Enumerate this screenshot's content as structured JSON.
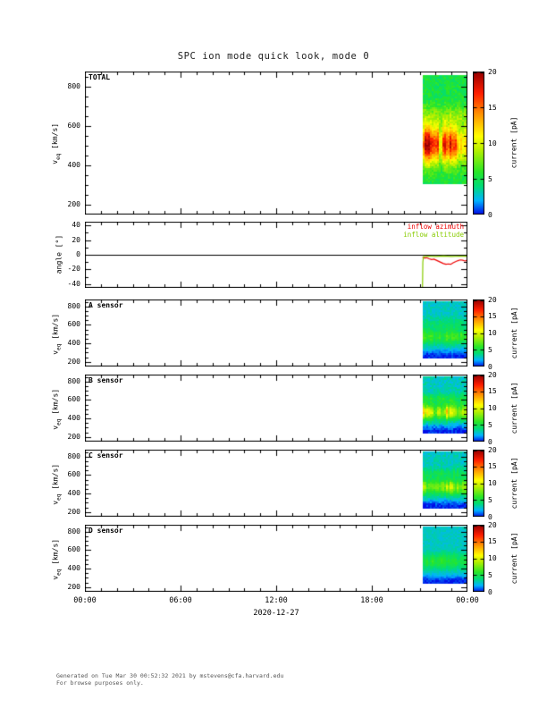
{
  "page": {
    "title": "SPC ion mode quick look, mode 0",
    "footer": [
      "Generated on Tue Mar 30 00:52:32 2021 by mstevens@cfa.harvard.edu",
      "For browse purposes only."
    ]
  },
  "x_axis": {
    "range_hours": [
      0,
      24
    ],
    "major_tick_hours": [
      0,
      6,
      12,
      18,
      24
    ],
    "tick_labels": [
      "00:00",
      "06:00",
      "12:00",
      "18:00",
      "00:00"
    ],
    "minor_tick_step_hours": 1,
    "date_label": "2020-12-27"
  },
  "velocity_axis": {
    "title_main": "v",
    "title_sub": "eq",
    "title_rest": " [km/s]",
    "range": [
      150,
      875
    ],
    "major_ticks": [
      200,
      400,
      600,
      800
    ],
    "minor_tick_step": 50
  },
  "angle_axis": {
    "title": "angle [°]",
    "range": [
      -45,
      45
    ],
    "major_ticks": [
      -40,
      -20,
      0,
      20,
      40
    ],
    "minor_tick_step": 10
  },
  "colorbar": {
    "title": "current [pA]",
    "range": [
      0,
      20
    ],
    "major_ticks": [
      0,
      5,
      10,
      15,
      20
    ],
    "colormap_stops": [
      [
        0.0,
        "#0000e6"
      ],
      [
        0.1,
        "#00b4ff"
      ],
      [
        0.2,
        "#00dc78"
      ],
      [
        0.3,
        "#28e628"
      ],
      [
        0.45,
        "#b4f000"
      ],
      [
        0.55,
        "#ffff00"
      ],
      [
        0.7,
        "#ff9600"
      ],
      [
        0.85,
        "#ff1e00"
      ],
      [
        1.0,
        "#960000"
      ]
    ]
  },
  "chart_data": [
    {
      "type": "heatmap",
      "panel_label": "TOTAL",
      "value_unit": "pA",
      "time_range_hours": [
        21.15,
        24.0
      ],
      "velocity_range_kms": [
        300,
        860
      ],
      "background_pA": 5.2,
      "noise_pA": 1.1,
      "bands": [
        {
          "v_center": 505,
          "v_sigma": 68,
          "amp_pA": 12.5,
          "streak": 0.45,
          "time_profile": [
            [
              21.15,
              0.95
            ],
            [
              21.7,
              1.0
            ],
            [
              22.15,
              0.85
            ],
            [
              22.3,
              0.35
            ],
            [
              22.5,
              0.95
            ],
            [
              22.9,
              1.0
            ],
            [
              23.25,
              0.8
            ],
            [
              23.45,
              0.4
            ],
            [
              23.7,
              0.55
            ],
            [
              24.0,
              0.6
            ]
          ]
        },
        {
          "v_center": 650,
          "v_sigma": 38,
          "amp_pA": 2.2,
          "streak": 0.3,
          "time_profile": [
            [
              21.15,
              1.0
            ],
            [
              24.0,
              1.0
            ]
          ]
        }
      ]
    },
    {
      "type": "line",
      "panel_label": "angle",
      "zero_line_deg": 0,
      "series": [
        {
          "name": "inflow azimuth",
          "color": "#ee0000",
          "points": [
            [
              21.18,
              -3.2
            ],
            [
              21.3,
              -4.5
            ],
            [
              21.45,
              -4.0
            ],
            [
              21.6,
              -5.5
            ],
            [
              21.75,
              -6.5
            ],
            [
              21.9,
              -6.0
            ],
            [
              22.05,
              -7.5
            ],
            [
              22.2,
              -9.0
            ],
            [
              22.35,
              -10.5
            ],
            [
              22.5,
              -12.0
            ],
            [
              22.65,
              -13.0
            ],
            [
              22.8,
              -12.5
            ],
            [
              22.95,
              -13.0
            ],
            [
              23.1,
              -11.0
            ],
            [
              23.25,
              -9.5
            ],
            [
              23.4,
              -8.0
            ],
            [
              23.55,
              -7.0
            ],
            [
              23.7,
              -7.5
            ],
            [
              23.85,
              -8.5
            ],
            [
              24.0,
              -7.5
            ]
          ]
        },
        {
          "name": "inflow altitude",
          "color": "#88cc00",
          "points": [
            [
              21.18,
              -44.0
            ],
            [
              21.2,
              -10.0
            ],
            [
              21.24,
              -2.5
            ],
            [
              21.5,
              -1.8
            ],
            [
              22.0,
              -2.2
            ],
            [
              22.5,
              -1.6
            ],
            [
              23.0,
              -2.3
            ],
            [
              23.5,
              -1.8
            ],
            [
              24.0,
              -2.0
            ]
          ]
        }
      ]
    },
    {
      "type": "heatmap",
      "panel_label": "A sensor",
      "value_unit": "pA",
      "time_range_hours": [
        21.15,
        24.0
      ],
      "velocity_range_kms": [
        240,
        865
      ],
      "background_pA": 2.9,
      "noise_pA": 0.6,
      "bands": [
        {
          "v_center": 255,
          "v_sigma": 50,
          "amp_pA": -2.6,
          "streak": 0.1,
          "time_profile": [
            [
              21.15,
              1.0
            ],
            [
              24.0,
              1.0
            ]
          ]
        },
        {
          "v_center": 470,
          "v_sigma": 55,
          "amp_pA": 3.8,
          "streak": 0.6,
          "time_profile": [
            [
              21.15,
              0.9
            ],
            [
              22.3,
              0.7
            ],
            [
              22.6,
              1.0
            ],
            [
              23.4,
              0.8
            ],
            [
              24.0,
              0.9
            ]
          ]
        },
        {
          "v_center": 610,
          "v_sigma": 45,
          "amp_pA": 1.2,
          "streak": 0.5,
          "time_profile": [
            [
              21.15,
              1.0
            ],
            [
              24.0,
              1.0
            ]
          ]
        }
      ]
    },
    {
      "type": "heatmap",
      "panel_label": "B sensor",
      "value_unit": "pA",
      "time_range_hours": [
        21.15,
        24.0
      ],
      "velocity_range_kms": [
        240,
        865
      ],
      "background_pA": 3.0,
      "noise_pA": 0.8,
      "bands": [
        {
          "v_center": 255,
          "v_sigma": 50,
          "amp_pA": -2.7,
          "streak": 0.1,
          "time_profile": [
            [
              21.15,
              1.0
            ],
            [
              24.0,
              1.0
            ]
          ]
        },
        {
          "v_center": 470,
          "v_sigma": 55,
          "amp_pA": 7.5,
          "streak": 0.9,
          "time_profile": [
            [
              21.15,
              0.9
            ],
            [
              22.2,
              0.75
            ],
            [
              22.5,
              1.0
            ],
            [
              23.1,
              0.9
            ],
            [
              23.5,
              0.6
            ],
            [
              24.0,
              0.8
            ]
          ]
        },
        {
          "v_center": 615,
          "v_sigma": 40,
          "amp_pA": 2.0,
          "streak": 0.7,
          "time_profile": [
            [
              21.15,
              1.0
            ],
            [
              24.0,
              1.0
            ]
          ]
        }
      ]
    },
    {
      "type": "heatmap",
      "panel_label": "C sensor",
      "value_unit": "pA",
      "time_range_hours": [
        21.15,
        24.0
      ],
      "velocity_range_kms": [
        240,
        865
      ],
      "background_pA": 3.0,
      "noise_pA": 0.7,
      "bands": [
        {
          "v_center": 255,
          "v_sigma": 50,
          "amp_pA": -2.7,
          "streak": 0.1,
          "time_profile": [
            [
              21.15,
              1.0
            ],
            [
              24.0,
              1.0
            ]
          ]
        },
        {
          "v_center": 470,
          "v_sigma": 55,
          "amp_pA": 6.0,
          "streak": 0.85,
          "time_profile": [
            [
              21.15,
              0.85
            ],
            [
              22.3,
              0.7
            ],
            [
              22.6,
              1.0
            ],
            [
              23.2,
              0.85
            ],
            [
              23.6,
              0.6
            ],
            [
              24.0,
              0.75
            ]
          ]
        },
        {
          "v_center": 615,
          "v_sigma": 40,
          "amp_pA": 1.6,
          "streak": 0.6,
          "time_profile": [
            [
              21.15,
              1.0
            ],
            [
              24.0,
              1.0
            ]
          ]
        }
      ]
    },
    {
      "type": "heatmap",
      "panel_label": "D sensor",
      "value_unit": "pA",
      "time_range_hours": [
        21.15,
        24.0
      ],
      "velocity_range_kms": [
        240,
        865
      ],
      "background_pA": 2.9,
      "noise_pA": 0.5,
      "bands": [
        {
          "v_center": 255,
          "v_sigma": 50,
          "amp_pA": -2.6,
          "streak": 0.1,
          "time_profile": [
            [
              21.15,
              1.0
            ],
            [
              24.0,
              1.0
            ]
          ]
        },
        {
          "v_center": 480,
          "v_sigma": 60,
          "amp_pA": 2.8,
          "streak": 0.4,
          "time_profile": [
            [
              21.15,
              0.9
            ],
            [
              22.5,
              1.0
            ],
            [
              23.5,
              0.8
            ],
            [
              24.0,
              0.9
            ]
          ]
        }
      ]
    }
  ]
}
